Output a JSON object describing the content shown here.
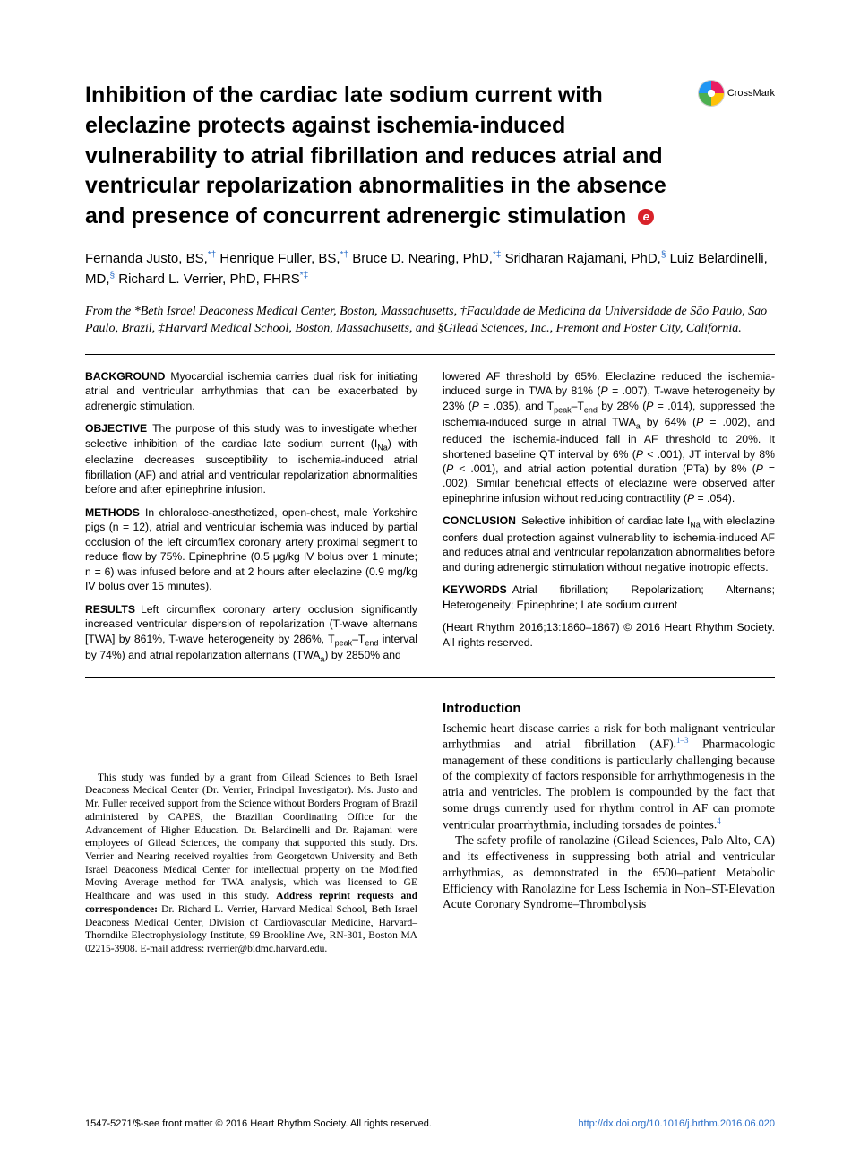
{
  "title": "Inhibition of the cardiac late sodium current with eleclazine protects against ischemia-induced vulnerability to atrial fibrillation and reduces atrial and ventricular repolarization abnormalities in the absence and presence of concurrent adrenergic stimulation",
  "crossmark_label": "CrossMark",
  "authors_html": "Fernanda Justo, BS,<sup>*†</sup> Henrique Fuller, BS,<sup>*†</sup> Bruce D. Nearing, PhD,<sup>*‡</sup> Sridharan Rajamani, PhD,<sup>§</sup> Luiz Belardinelli, MD,<sup>§</sup> Richard L. Verrier, PhD, FHRS<sup>*‡</sup>",
  "affiliations": "From the *Beth Israel Deaconess Medical Center, Boston, Massachusetts, †Faculdade de Medicina da Universidade de São Paulo, Sao Paulo, Brazil, ‡Harvard Medical School, Boston, Massachusetts, and §Gilead Sciences, Inc., Fremont and Foster City, California.",
  "abstract": {
    "background": {
      "head": "BACKGROUND",
      "text": "Myocardial ischemia carries dual risk for initiating atrial and ventricular arrhythmias that can be exacerbated by adrenergic stimulation."
    },
    "objective": {
      "head": "OBJECTIVE",
      "text": "The purpose of this study was to investigate whether selective inhibition of the cardiac late sodium current (I_Na) with eleclazine decreases susceptibility to ischemia-induced atrial fibrillation (AF) and atrial and ventricular repolarization abnormalities before and after epinephrine infusion."
    },
    "methods": {
      "head": "METHODS",
      "text": "In chloralose-anesthetized, open-chest, male Yorkshire pigs (n = 12), atrial and ventricular ischemia was induced by partial occlusion of the left circumflex coronary artery proximal segment to reduce flow by 75%. Epinephrine (0.5 μg/kg IV bolus over 1 minute; n = 6) was infused before and at 2 hours after eleclazine (0.9 mg/kg IV bolus over 15 minutes)."
    },
    "results": {
      "head": "RESULTS",
      "text_a": "Left circumflex coronary artery occlusion significantly increased ventricular dispersion of repolarization (T-wave alternans [TWA] by 861%, T-wave heterogeneity by 286%, T_peak–T_end interval by 74%) and atrial repolarization alternans (TWA_a) by 2850% and",
      "text_b": "lowered AF threshold by 65%. Eleclazine reduced the ischemia-induced surge in TWA by 81% (P = .007), T-wave heterogeneity by 23% (P = .035), and T_peak–T_end by 28% (P = .014), suppressed the ischemia-induced surge in atrial TWA_a by 64% (P = .002), and reduced the ischemia-induced fall in AF threshold to 20%. It shortened baseline QT interval by 6% (P < .001), JT interval by 8% (P < .001), and atrial action potential duration (PTa) by 8% (P = .002). Similar beneficial effects of eleclazine were observed after epinephrine infusion without reducing contractility (P = .054)."
    },
    "conclusion": {
      "head": "CONCLUSION",
      "text": "Selective inhibition of cardiac late I_Na with eleclazine confers dual protection against vulnerability to ischemia-induced AF and reduces atrial and ventricular repolarization abnormalities before and during adrenergic stimulation without negative inotropic effects."
    },
    "keywords": {
      "head": "KEYWORDS",
      "text": "Atrial fibrillation; Repolarization; Alternans; Heterogeneity; Epinephrine; Late sodium current"
    },
    "citation": "(Heart Rhythm 2016;13:1860–1867) © 2016 Heart Rhythm Society. All rights reserved."
  },
  "funding": "This study was funded by a grant from Gilead Sciences to Beth Israel Deaconess Medical Center (Dr. Verrier, Principal Investigator). Ms. Justo and Mr. Fuller received support from the Science without Borders Program of Brazil administered by CAPES, the Brazilian Coordinating Office for the Advancement of Higher Education. Dr. Belardinelli and Dr. Rajamani were employees of Gilead Sciences, the company that supported this study. Drs. Verrier and Nearing received royalties from Georgetown University and Beth Israel Deaconess Medical Center for intellectual property on the Modified Moving Average method for TWA analysis, which was licensed to GE Healthcare and was used in this study. Address reprint requests and correspondence: Dr. Richard L. Verrier, Harvard Medical School, Beth Israel Deaconess Medical Center, Division of Cardiovascular Medicine, Harvard–Thorndike Electrophysiology Institute, 99 Brookline Ave, RN-301, Boston MA 02215-3908. E-mail address: rverrier@bidmc.harvard.edu.",
  "intro": {
    "head": "Introduction",
    "p1": "Ischemic heart disease carries a risk for both malignant ventricular arrhythmias and atrial fibrillation (AF).",
    "p1_cite": "1–3",
    "p1b": " Pharmacologic management of these conditions is particularly challenging because of the complexity of factors responsible for arrhythmogenesis in the atria and ventricles. The problem is compounded by the fact that some drugs currently used for rhythm control in AF can promote ventricular proarrhythmia, including torsades de pointes.",
    "p1b_cite": "4",
    "p2": "The safety profile of ranolazine (Gilead Sciences, Palo Alto, CA) and its effectiveness in suppressing both atrial and ventricular arrhythmias, as demonstrated in the 6500–patient Metabolic Efficiency with Ranolazine for Less Ischemia in Non–ST-Elevation Acute Coronary Syndrome–Thrombolysis"
  },
  "footer": {
    "left": "1547-5271/$-see front matter © 2016 Heart Rhythm Society. All rights reserved.",
    "doi": "http://dx.doi.org/10.1016/j.hrthm.2016.06.020"
  },
  "colors": {
    "link": "#2a6ec9",
    "badge": "#d8232a"
  }
}
